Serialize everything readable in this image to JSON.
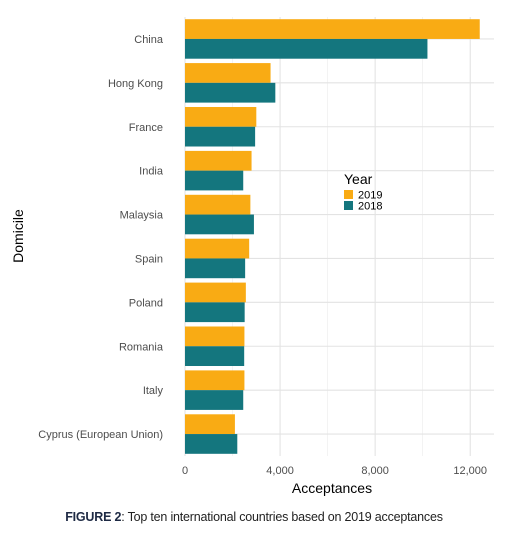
{
  "chart_data": {
    "type": "bar",
    "orientation": "horizontal",
    "categories": [
      "China",
      "Hong Kong",
      "France",
      "India",
      "Malaysia",
      "Spain",
      "Poland",
      "Romania",
      "Italy",
      "Cyprus (European Union)"
    ],
    "series": [
      {
        "name": "2019",
        "color": "#f9ab14",
        "values": [
          12400,
          3600,
          3000,
          2800,
          2750,
          2700,
          2560,
          2500,
          2500,
          2100
        ]
      },
      {
        "name": "2018",
        "color": "#14767e",
        "values": [
          10200,
          3800,
          2950,
          2450,
          2900,
          2530,
          2510,
          2490,
          2450,
          2200
        ]
      }
    ],
    "xlabel": "Acceptances",
    "ylabel": "Domicile",
    "xlim": [
      0,
      13000
    ],
    "x_ticks": [
      0,
      4000,
      8000,
      12000
    ],
    "x_tick_labels": [
      "0",
      "4,000",
      "8,000",
      "12,000"
    ],
    "legend": {
      "title": "Year",
      "placement": "center-right",
      "entries": [
        "2019",
        "2018"
      ]
    },
    "grid": true
  },
  "caption": {
    "label": "FIGURE 2",
    "text": ": Top ten international countries based on 2019 acceptances"
  }
}
